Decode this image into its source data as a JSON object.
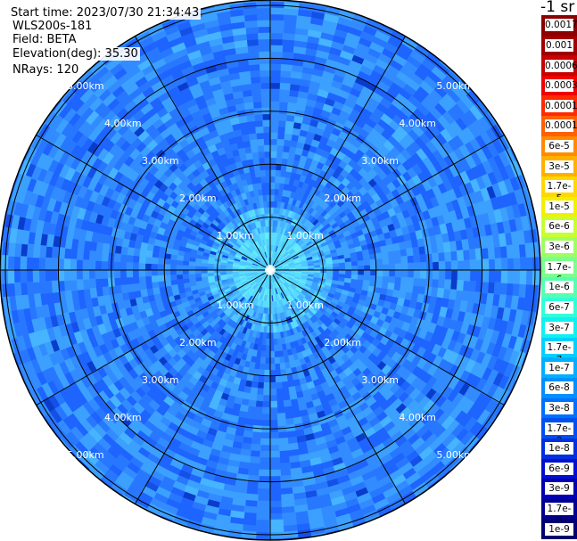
{
  "info": {
    "start_time": "Start time: 2023/07/30 21:34:43",
    "device": "WLS200s-181",
    "field": "Field: BETA",
    "elevation": "Elevation(deg): 35.30",
    "nrays": "NRays: 120"
  },
  "scale": {
    "unit": "-1 sr",
    "labels": [
      "0.0017",
      "0.001",
      "0.0006",
      "0.0003",
      "0.00017",
      "0.0001",
      "6e-5",
      "3e-5",
      "1.7e-5",
      "1e-5",
      "6e-6",
      "3e-6",
      "1.7e-6",
      "1e-6",
      "6e-7",
      "3e-7",
      "1.7e-7",
      "1e-7",
      "6e-8",
      "3e-8",
      "1.7e-8",
      "1e-8",
      "6e-9",
      "3e-9",
      "1.7e-9",
      "1e-9"
    ],
    "colors": [
      "#8b0000",
      "#a00000",
      "#c80000",
      "#f00000",
      "#ff2a00",
      "#ff6000",
      "#ff8c00",
      "#ffb000",
      "#ffd800",
      "#f0f000",
      "#c8ff30",
      "#a0ff60",
      "#7cff8c",
      "#56ffb0",
      "#30ffd8",
      "#10f0f0",
      "#00d0ff",
      "#00b0ff",
      "#0090ff",
      "#0070ff",
      "#0050f0",
      "#0030e0",
      "#0010d0",
      "#0000b0",
      "#000090",
      "#000070"
    ]
  },
  "rings": {
    "labels": [
      "1.00km",
      "2.00km",
      "3.00km",
      "4.00km",
      "5.00km"
    ]
  },
  "radar": {
    "rays": 120,
    "palette": [
      "#0a3ccc",
      "#1450e6",
      "#1e64ff",
      "#2878ff",
      "#328cff",
      "#3ca0ff",
      "#46b4ff",
      "#50c8ff",
      "#5adcff",
      "#64ecf8"
    ]
  }
}
